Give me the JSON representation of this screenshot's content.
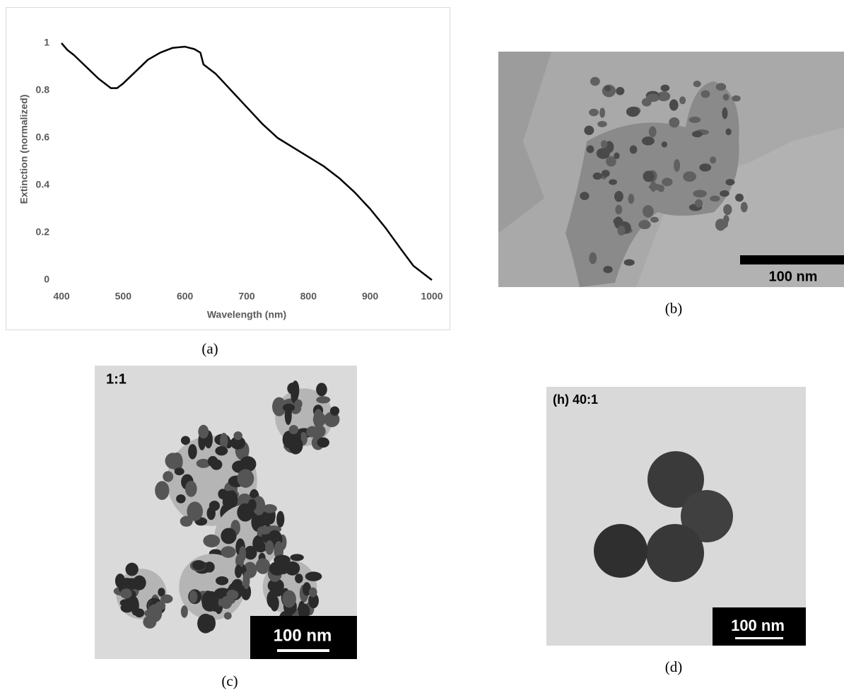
{
  "chart_data": {
    "type": "line",
    "x_label": "Wavelength (nm)",
    "y_label": "Extinction (normalized)",
    "x": [
      400,
      410,
      420,
      440,
      460,
      480,
      490,
      500,
      520,
      540,
      560,
      580,
      600,
      615,
      625,
      630,
      650,
      675,
      700,
      725,
      750,
      775,
      800,
      825,
      850,
      875,
      900,
      925,
      950,
      970,
      985,
      1000
    ],
    "values": [
      1.0,
      0.97,
      0.95,
      0.9,
      0.85,
      0.81,
      0.81,
      0.83,
      0.88,
      0.93,
      0.96,
      0.98,
      0.985,
      0.975,
      0.96,
      0.91,
      0.87,
      0.8,
      0.73,
      0.66,
      0.6,
      0.56,
      0.52,
      0.48,
      0.43,
      0.37,
      0.3,
      0.22,
      0.13,
      0.06,
      0.03,
      0.0
    ],
    "color": "#000000",
    "xlim": [
      400,
      1000
    ],
    "ylim": [
      0,
      1.1
    ],
    "xticks": [
      400,
      500,
      600,
      700,
      800,
      900,
      1000
    ],
    "yticks": [
      0,
      0.2,
      0.4,
      0.6,
      0.8,
      1
    ]
  },
  "panel_a": {
    "caption": "(a)"
  },
  "panel_b": {
    "scale_bar": "100 nm",
    "caption": "(b)"
  },
  "panel_c": {
    "label": "1:1",
    "scale_bar": "100 nm",
    "caption": "(c)"
  },
  "panel_d": {
    "label": "(h) 40:1",
    "scale_bar": "100 nm",
    "caption": "(d)"
  }
}
